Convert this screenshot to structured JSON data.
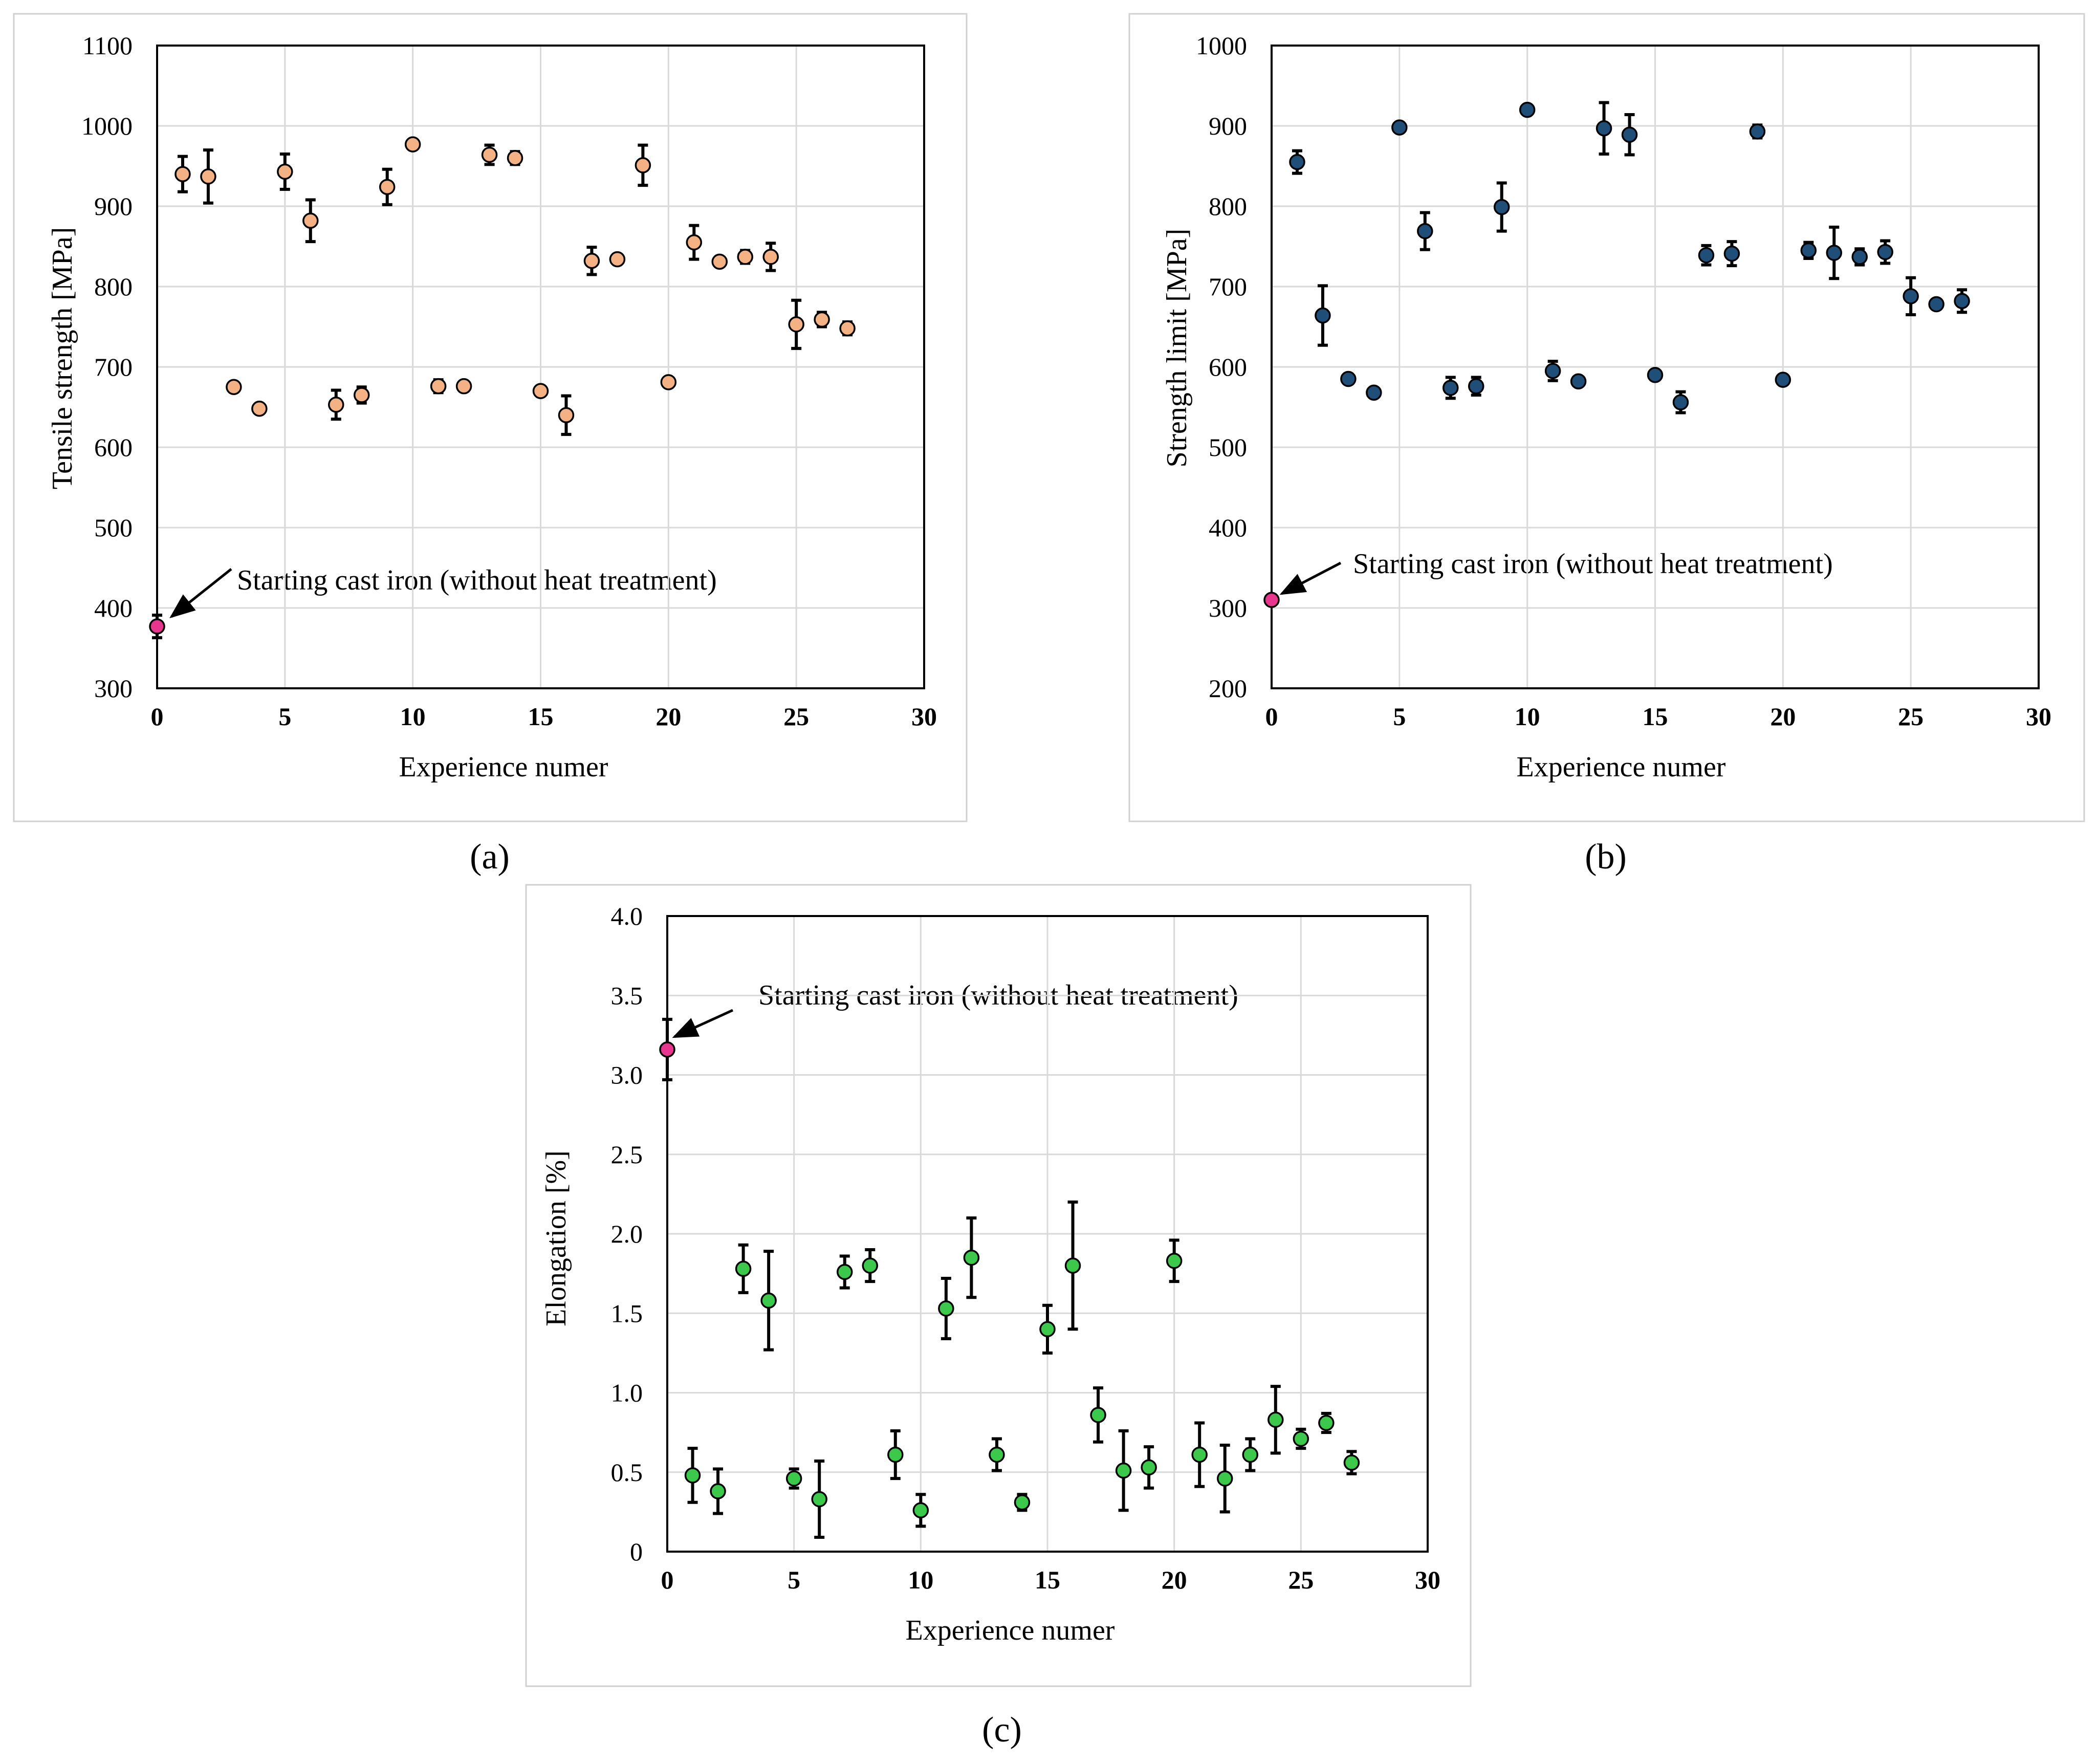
{
  "chart_data": [
    {
      "type": "scatter",
      "panel_label": "a",
      "title": "",
      "xlabel": "Experience numer",
      "ylabel": "Tensile strength [MPa]",
      "xlim": [
        0,
        30
      ],
      "ylim": [
        300,
        1100
      ],
      "xticks": [
        0,
        5,
        10,
        15,
        20,
        25,
        30
      ],
      "yticks": [
        300,
        400,
        500,
        600,
        700,
        800,
        900,
        1000,
        1100
      ],
      "grid": true,
      "colors": {
        "points": "#f4b183",
        "baseline": "#e8358e"
      },
      "baseline": {
        "x": 0,
        "y": 377,
        "err": 14,
        "annotation": "Starting cast iron (without heat treatment)"
      },
      "x": [
        1,
        2,
        3,
        4,
        5,
        6,
        7,
        8,
        9,
        10,
        11,
        12,
        13,
        14,
        15,
        16,
        17,
        18,
        19,
        20,
        21,
        22,
        23,
        24,
        25,
        26,
        27
      ],
      "y": [
        940,
        937,
        675,
        648,
        943,
        882,
        653,
        665,
        924,
        977,
        676,
        676,
        964,
        960,
        670,
        640,
        832,
        834,
        951,
        681,
        855,
        831,
        837,
        837,
        753,
        759,
        748
      ],
      "err": [
        22,
        33,
        0,
        0,
        22,
        26,
        18,
        10,
        22,
        0,
        8,
        0,
        12,
        8,
        0,
        24,
        17,
        6,
        25,
        0,
        21,
        0,
        8,
        17,
        30,
        9,
        8
      ]
    },
    {
      "type": "scatter",
      "panel_label": "b",
      "title": "",
      "xlabel": "Experience numer",
      "ylabel": "Strength limit [MPa]",
      "xlim": [
        0,
        30
      ],
      "ylim": [
        200,
        1000
      ],
      "xticks": [
        0,
        5,
        10,
        15,
        20,
        25,
        30
      ],
      "yticks": [
        200,
        300,
        400,
        500,
        600,
        700,
        800,
        900,
        1000
      ],
      "grid": true,
      "colors": {
        "points": "#1f4e79",
        "baseline": "#e8358e"
      },
      "baseline": {
        "x": 0,
        "y": 310,
        "err": 0,
        "annotation": "Starting cast iron (without heat treatment)"
      },
      "x": [
        1,
        2,
        3,
        4,
        5,
        6,
        7,
        8,
        9,
        10,
        11,
        12,
        13,
        14,
        15,
        16,
        17,
        18,
        19,
        20,
        21,
        22,
        23,
        24,
        25,
        26,
        27
      ],
      "y": [
        855,
        664,
        585,
        568,
        898,
        769,
        574,
        576,
        799,
        920,
        595,
        582,
        897,
        889,
        590,
        556,
        739,
        741,
        893,
        584,
        745,
        742,
        737,
        743,
        688,
        678,
        682
      ],
      "err": [
        14,
        37,
        0,
        0,
        0,
        23,
        13,
        11,
        30,
        0,
        12,
        0,
        32,
        25,
        0,
        13,
        12,
        15,
        8,
        0,
        10,
        32,
        10,
        14,
        23,
        0,
        14
      ]
    },
    {
      "type": "scatter",
      "panel_label": "c",
      "title": "",
      "xlabel": "Experience numer",
      "ylabel": "Elongation  [%]",
      "xlim": [
        0,
        30
      ],
      "ylim": [
        0,
        4.0
      ],
      "xticks": [
        0,
        5,
        10,
        15,
        20,
        25,
        30
      ],
      "yticks": [
        "0",
        "0.5",
        "1.0",
        "1.5",
        "2.0",
        "2.5",
        "3.0",
        "3.5",
        "4.0"
      ],
      "grid": true,
      "colors": {
        "points": "#3cc84a",
        "baseline": "#e8358e"
      },
      "baseline": {
        "x": 0,
        "y": 3.16,
        "err": 0.19,
        "annotation": "Starting cast iron (without heat treatment)"
      },
      "x": [
        1,
        2,
        3,
        4,
        5,
        6,
        7,
        8,
        9,
        10,
        11,
        12,
        13,
        14,
        15,
        16,
        17,
        18,
        19,
        20,
        21,
        22,
        23,
        24,
        25,
        26,
        27
      ],
      "y": [
        0.48,
        0.38,
        1.78,
        1.58,
        0.46,
        0.33,
        1.76,
        1.8,
        0.61,
        0.26,
        1.53,
        1.85,
        0.61,
        0.31,
        1.4,
        1.8,
        0.86,
        0.51,
        0.53,
        1.83,
        0.61,
        0.46,
        0.61,
        0.83,
        0.71,
        0.81,
        0.56
      ],
      "err": [
        0.17,
        0.14,
        0.15,
        0.31,
        0.06,
        0.24,
        0.1,
        0.1,
        0.15,
        0.1,
        0.19,
        0.25,
        0.1,
        0.05,
        0.15,
        0.4,
        0.17,
        0.25,
        0.13,
        0.13,
        0.2,
        0.21,
        0.1,
        0.21,
        0.06,
        0.06,
        0.07
      ]
    }
  ],
  "captions": [
    "(a)",
    "(b)",
    "(c)"
  ]
}
